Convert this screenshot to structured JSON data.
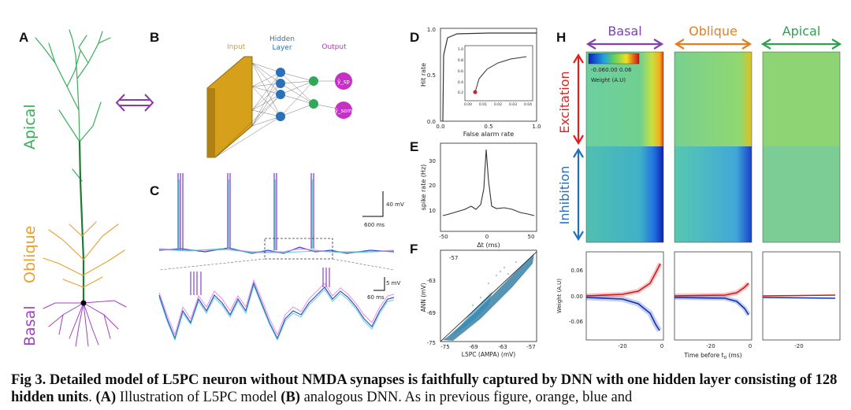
{
  "panels": {
    "A": "A",
    "B": "B",
    "C": "C",
    "D": "D",
    "E": "E",
    "F": "F",
    "H": "H"
  },
  "neuron": {
    "apical": "Apical",
    "oblique": "Oblique",
    "basal": "Basal",
    "apical_color": "#3aae5a",
    "oblique_color": "#e8a030",
    "basal_color": "#a040c0"
  },
  "dnn": {
    "input": "Input",
    "hidden_line1": "Hidden",
    "hidden_line2": "Layer",
    "output": "Output",
    "out1": "ŷ_sp",
    "out2": "ŷ_som",
    "input_color": "#d6a01a",
    "hidden_color": "#2a72b8",
    "output_color": "#2fa85a",
    "out_color": "#c530c5"
  },
  "traces": {
    "scale1_v": "40 mV",
    "scale1_t": "600 ms",
    "scale2_v": "5 mV",
    "scale2_t": "60 ms"
  },
  "roc": {
    "ylabel": "Hit rate",
    "xlabel": "False alarm rate",
    "yticks": [
      "0.0",
      "0.5",
      "1.0"
    ],
    "xticks": [
      "0.0",
      "0.5",
      "1.0"
    ],
    "inset_yticks": [
      "0.2",
      "0.4",
      "0.6",
      "0.8",
      "1.0"
    ],
    "inset_xticks": [
      "0.00",
      "0.01",
      "0.02",
      "0.03",
      "0.04"
    ]
  },
  "xcorr": {
    "ylabel": "spike rate (Hz)",
    "xlabel": "Δt (ms)",
    "yticks": [
      "10",
      "20",
      "30"
    ],
    "xticks": [
      "-50",
      "0",
      "50"
    ]
  },
  "scatter": {
    "ylabel": "ANN (mV)",
    "xlabel": "L5PC (AMPA) (mV)",
    "yticks": [
      "-57",
      "-63",
      "-69",
      "-75"
    ],
    "xticks": [
      "-75",
      "-69",
      "-63",
      "-57"
    ]
  },
  "weights": {
    "basal": "Basal",
    "oblique": "Oblique",
    "apical": "Apical",
    "excitation": "Excitation",
    "inhibition": "Inhibition",
    "colorbar": "-0.060.00 0.06",
    "colorbar_label": "Weight (A.U)",
    "ylabel": "Weight (A.U)",
    "yticks": [
      "0.06",
      "0.00",
      "-0.06"
    ],
    "xticks": [
      "-20",
      "0"
    ],
    "xlabel": "Time before t",
    "xlabel_sub": "0",
    "xlabel_unit": " (ms)",
    "excite_color": "#e02020",
    "inhib_color": "#2060c0"
  },
  "caption": {
    "bold": "Fig 3. Detailed model of L5PC neuron without NMDA synapses is faithfully captured by DNN with one hidden layer consisting of 128 hidden units",
    "text_a": ". ",
    "tag_a": "(A)",
    "text_b": " Illustration of L5PC model ",
    "tag_b": "(B)",
    "text_c": " analogous DNN. As in previous figure, orange, blue and"
  }
}
